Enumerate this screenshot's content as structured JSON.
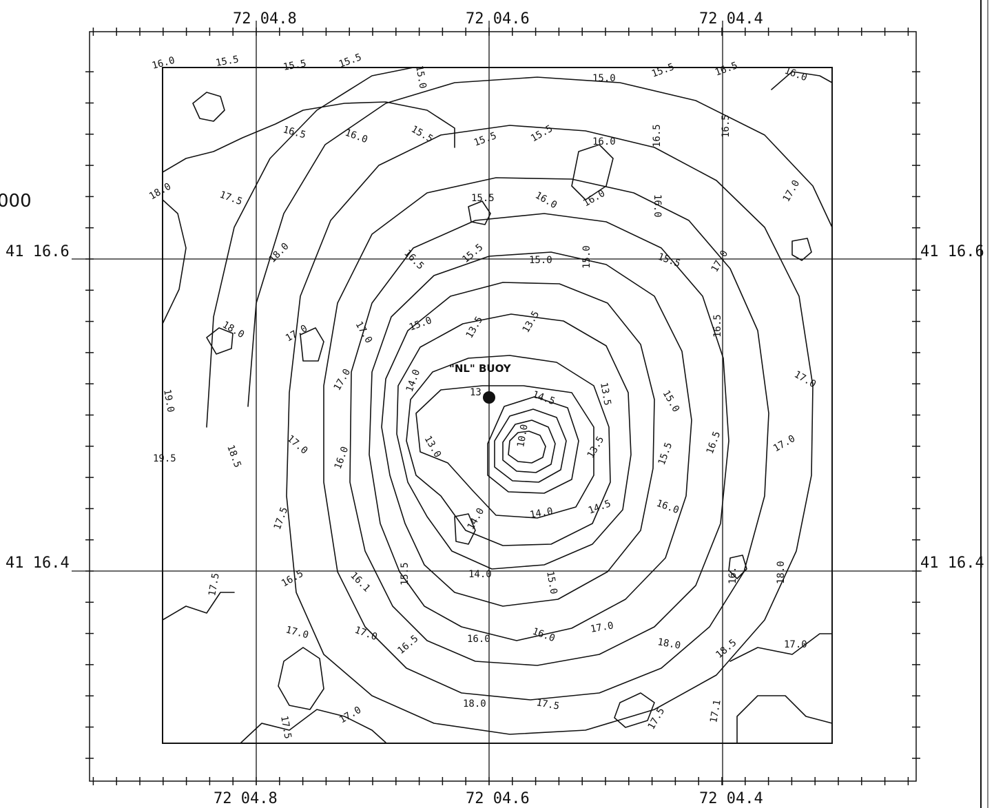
{
  "map": {
    "longitude_labels": [
      "72 04.8",
      "72 04.6",
      "72 04.4"
    ],
    "latitude_labels": [
      "41 16.6",
      "41 16.4"
    ],
    "partial_left_text": "000",
    "buoy_label": "\"NL\" BUOY",
    "contour_labels": [
      "16.0",
      "15.5",
      "15.5",
      "15.5",
      "15.0",
      "15.0",
      "15.5",
      "16.5",
      "16.0",
      "16.5",
      "16.0",
      "15.5",
      "15.5",
      "15.5",
      "16.0",
      "16.5",
      "16.5",
      "18.0",
      "17.5",
      "15.5",
      "16.0",
      "16.0",
      "16.0",
      "17.0",
      "18.0",
      "16.5",
      "15.5",
      "15.0",
      "15.0",
      "15.5",
      "17.0",
      "18.0",
      "17.0",
      "17.0",
      "15.0",
      "13.5",
      "13.5",
      "16.5",
      "19.0",
      "17.0",
      "14.0",
      "13.",
      "14.5",
      "13.5",
      "15.0",
      "17.0",
      "19.5",
      "18.5",
      "17.0",
      "16.0",
      "13.0",
      "10.0",
      "13.5",
      "15.5",
      "16.5",
      "17.0",
      "17.5",
      "14.0",
      "14.0",
      "14.5",
      "16.0",
      "17.5",
      "16.5",
      "16.1",
      "15.5",
      "14.0",
      "15.0",
      "16.",
      "18.0",
      "17.0",
      "17.0",
      "16.5",
      "16.0",
      "16.0",
      "17.0",
      "18.0",
      "18.5",
      "17.0",
      "17.5",
      "17.0",
      "18.0",
      "17.5",
      "17.5",
      "17.1"
    ]
  }
}
